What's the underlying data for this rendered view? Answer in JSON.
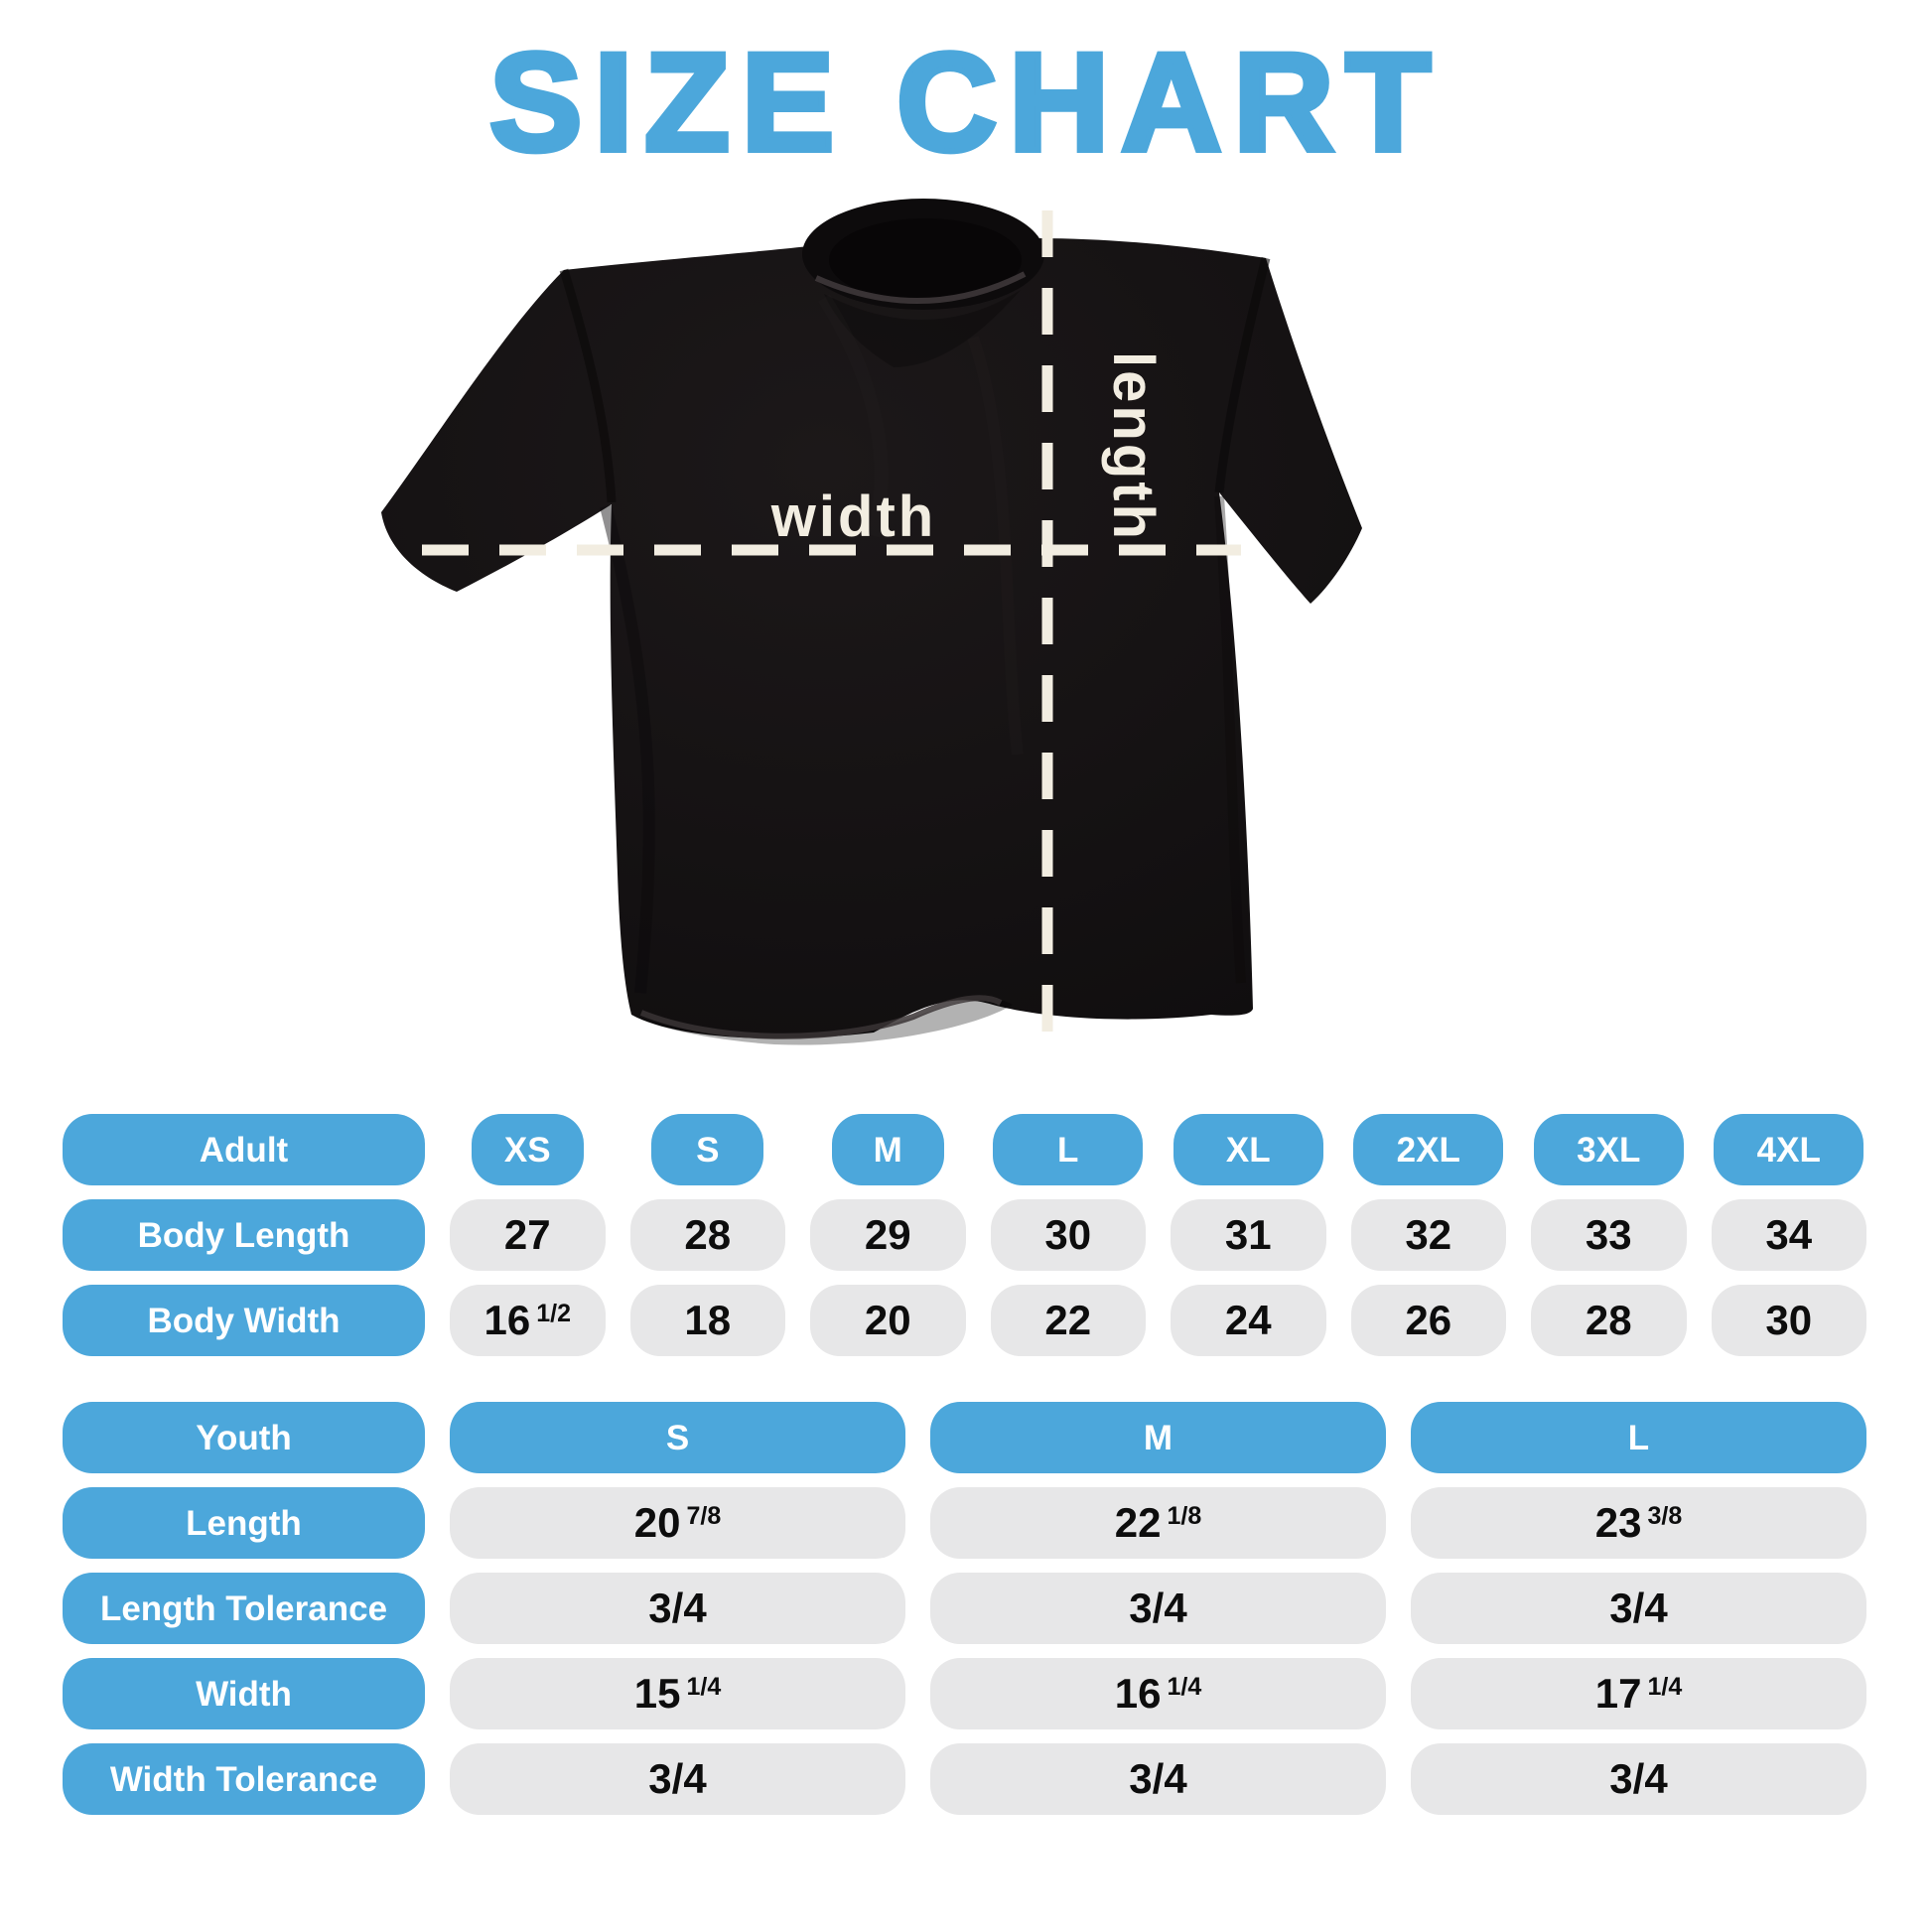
{
  "title": "SIZE CHART",
  "colors": {
    "blue": "#4CA7DB",
    "pill_gray": "#E7E7E8",
    "cream": "#F2EDE1",
    "number_black": "#0D0D0D",
    "shirt_black": "#151213"
  },
  "shirt": {
    "width_label": "width",
    "length_label": "length"
  },
  "adult_table": {
    "header": [
      "Adult",
      "XS",
      "S",
      "M",
      "L",
      "XL",
      "2XL",
      "3XL",
      "4XL"
    ],
    "rows": [
      {
        "label": "Body Length",
        "cells": [
          {
            "v": "27"
          },
          {
            "v": "28"
          },
          {
            "v": "29"
          },
          {
            "v": "30"
          },
          {
            "v": "31"
          },
          {
            "v": "32"
          },
          {
            "v": "33"
          },
          {
            "v": "34"
          }
        ]
      },
      {
        "label": "Body Width",
        "cells": [
          {
            "v": "16",
            "f": "1/2"
          },
          {
            "v": "18"
          },
          {
            "v": "20"
          },
          {
            "v": "22"
          },
          {
            "v": "24"
          },
          {
            "v": "26"
          },
          {
            "v": "28"
          },
          {
            "v": "30"
          }
        ]
      }
    ]
  },
  "youth_table": {
    "header": [
      "Youth",
      "S",
      "M",
      "L"
    ],
    "rows": [
      {
        "label": "Length",
        "cells": [
          {
            "v": "20",
            "f": "7/8"
          },
          {
            "v": "22",
            "f": "1/8"
          },
          {
            "v": "23",
            "f": "3/8"
          }
        ]
      },
      {
        "label": "Length Tolerance",
        "cells": [
          {
            "v": "3/4"
          },
          {
            "v": "3/4"
          },
          {
            "v": "3/4"
          }
        ]
      },
      {
        "label": "Width",
        "cells": [
          {
            "v": "15",
            "f": "1/4"
          },
          {
            "v": "16",
            "f": "1/4"
          },
          {
            "v": "17",
            "f": "1/4"
          }
        ]
      },
      {
        "label": "Width Tolerance",
        "cells": [
          {
            "v": "3/4"
          },
          {
            "v": "3/4"
          },
          {
            "v": "3/4"
          }
        ]
      }
    ]
  },
  "chart_data": [
    {
      "type": "table",
      "title": "Adult sizes (inches)",
      "columns": [
        "Adult",
        "XS",
        "S",
        "M",
        "L",
        "XL",
        "2XL",
        "3XL",
        "4XL"
      ],
      "rows": [
        [
          "Body Length",
          "27",
          "28",
          "29",
          "30",
          "31",
          "32",
          "33",
          "34"
        ],
        [
          "Body Width",
          "16 1/2",
          "18",
          "20",
          "22",
          "24",
          "26",
          "28",
          "30"
        ]
      ]
    },
    {
      "type": "table",
      "title": "Youth sizes (inches)",
      "columns": [
        "Youth",
        "S",
        "M",
        "L"
      ],
      "rows": [
        [
          "Length",
          "20 7/8",
          "22 1/8",
          "23 3/8"
        ],
        [
          "Length Tolerance",
          "3/4",
          "3/4",
          "3/4"
        ],
        [
          "Width",
          "15 1/4",
          "16 1/4",
          "17 1/4"
        ],
        [
          "Width Tolerance",
          "3/4",
          "3/4",
          "3/4"
        ]
      ]
    }
  ]
}
